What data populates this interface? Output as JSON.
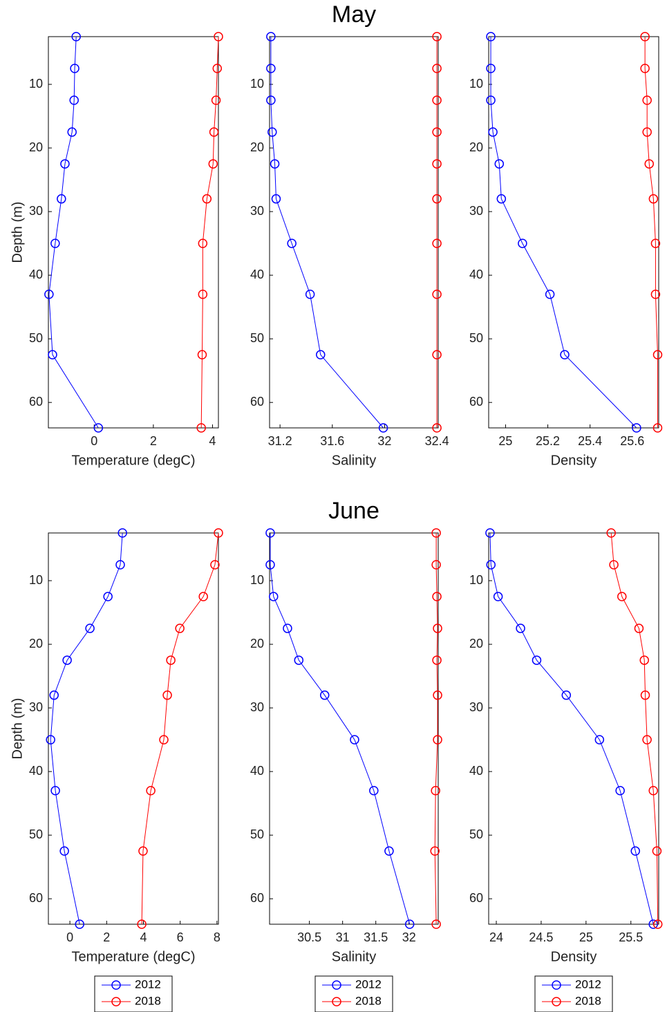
{
  "chart_data": [
    {
      "type": "line",
      "xlabel": "Temperature (degC)",
      "ylabel": "Depth (m)",
      "xlim": [
        -1.55,
        4.2
      ],
      "xticks": [
        0,
        2,
        4
      ],
      "ylim": [
        2.5,
        64
      ],
      "yticks": [
        10,
        20,
        30,
        40,
        50,
        60
      ],
      "yreverse": true,
      "y": [
        2.5,
        7.5,
        12.5,
        17.5,
        22.5,
        28,
        35,
        43,
        52.5,
        64
      ],
      "series": [
        {
          "color": "#0000ff",
          "values": [
            -0.61,
            -0.66,
            -0.68,
            -0.75,
            -0.99,
            -1.11,
            -1.32,
            -1.53,
            -1.41,
            0.14
          ]
        },
        {
          "color": "#ff0000",
          "values": [
            4.2,
            4.16,
            4.12,
            4.05,
            4.02,
            3.81,
            3.67,
            3.67,
            3.65,
            3.62
          ]
        }
      ]
    },
    {
      "type": "line",
      "title": "May",
      "xlabel": "Salinity",
      "xlim": [
        31.12,
        32.41
      ],
      "xticks": [
        31.2,
        31.6,
        32,
        32.4
      ],
      "ylim": [
        2.5,
        64
      ],
      "yticks": [
        10,
        20,
        30,
        40,
        50,
        60
      ],
      "yreverse": true,
      "y": [
        2.5,
        7.5,
        12.5,
        17.5,
        22.5,
        28,
        35,
        43,
        52.5,
        64
      ],
      "series": [
        {
          "color": "#0000ff",
          "values": [
            31.13,
            31.13,
            31.13,
            31.14,
            31.16,
            31.17,
            31.29,
            31.43,
            31.51,
            31.99
          ]
        },
        {
          "color": "#ff0000",
          "values": [
            32.4,
            32.4,
            32.4,
            32.4,
            32.4,
            32.4,
            32.4,
            32.4,
            32.4,
            32.4
          ]
        }
      ]
    },
    {
      "type": "line",
      "xlabel": "Density",
      "xlim": [
        24.92,
        25.725
      ],
      "xticks": [
        25,
        25.2,
        25.4,
        25.6
      ],
      "ylim": [
        2.5,
        64
      ],
      "yticks": [
        10,
        20,
        30,
        40,
        50,
        60
      ],
      "yreverse": true,
      "y": [
        2.5,
        7.5,
        12.5,
        17.5,
        22.5,
        28,
        35,
        43,
        52.5,
        64
      ],
      "series": [
        {
          "color": "#0000ff",
          "values": [
            24.93,
            24.93,
            24.93,
            24.94,
            24.97,
            24.98,
            25.08,
            25.21,
            25.28,
            25.62
          ]
        },
        {
          "color": "#ff0000",
          "values": [
            25.66,
            25.66,
            25.67,
            25.67,
            25.68,
            25.7,
            25.71,
            25.71,
            25.72,
            25.72
          ]
        }
      ]
    },
    {
      "type": "line",
      "xlabel": "Temperature (degC)",
      "ylabel": "Depth (m)",
      "xlim": [
        -1.17,
        8.08
      ],
      "xticks": [
        0,
        2,
        4,
        6,
        8
      ],
      "ylim": [
        2.5,
        64
      ],
      "yticks": [
        10,
        20,
        30,
        40,
        50,
        60
      ],
      "yreverse": true,
      "y": [
        2.5,
        7.5,
        12.5,
        17.5,
        22.5,
        28,
        35,
        43,
        52.5,
        64
      ],
      "legend": "below",
      "series": [
        {
          "name": "2012",
          "color": "#0000ff",
          "values": [
            2.86,
            2.74,
            2.07,
            1.09,
            -0.15,
            -0.86,
            -1.05,
            -0.79,
            -0.3,
            0.53
          ]
        },
        {
          "name": "2018",
          "color": "#ff0000",
          "values": [
            8.08,
            7.89,
            7.26,
            5.98,
            5.49,
            5.3,
            5.11,
            4.4,
            3.98,
            3.91
          ]
        }
      ]
    },
    {
      "type": "line",
      "title": "June",
      "xlabel": "Salinity",
      "xlim": [
        29.9,
        32.44
      ],
      "xticks": [
        30.5,
        31,
        31.5,
        32
      ],
      "ylim": [
        2.5,
        64
      ],
      "yticks": [
        10,
        20,
        30,
        40,
        50,
        60
      ],
      "yreverse": true,
      "y": [
        2.5,
        7.5,
        12.5,
        17.5,
        22.5,
        28,
        35,
        43,
        52.5,
        64
      ],
      "legend": "below",
      "series": [
        {
          "name": "2012",
          "color": "#0000ff",
          "values": [
            29.91,
            29.91,
            29.96,
            30.17,
            30.34,
            30.73,
            31.18,
            31.47,
            31.7,
            32.01
          ]
        },
        {
          "name": "2018",
          "color": "#ff0000",
          "values": [
            32.41,
            32.41,
            32.42,
            32.43,
            32.42,
            32.43,
            32.43,
            32.4,
            32.39,
            32.41
          ]
        }
      ]
    },
    {
      "type": "line",
      "xlabel": "Density",
      "xlim": [
        23.915,
        25.81
      ],
      "xticks": [
        24,
        24.5,
        25,
        25.5
      ],
      "ylim": [
        2.5,
        64
      ],
      "yticks": [
        10,
        20,
        30,
        40,
        50,
        60
      ],
      "yreverse": true,
      "y": [
        2.5,
        7.5,
        12.5,
        17.5,
        22.5,
        28,
        35,
        43,
        52.5,
        64
      ],
      "legend": "below",
      "series": [
        {
          "name": "2012",
          "color": "#0000ff",
          "values": [
            23.93,
            23.94,
            24.02,
            24.27,
            24.45,
            24.78,
            25.15,
            25.38,
            25.55,
            25.75
          ]
        },
        {
          "name": "2018",
          "color": "#ff0000",
          "values": [
            25.28,
            25.31,
            25.4,
            25.59,
            25.65,
            25.66,
            25.68,
            25.75,
            25.79,
            25.8
          ]
        }
      ]
    }
  ]
}
